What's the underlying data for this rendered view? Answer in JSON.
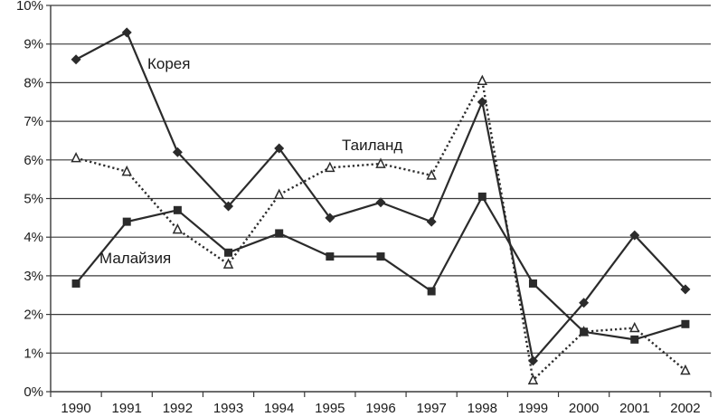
{
  "chart_data": {
    "type": "line",
    "title": "",
    "xlabel": "",
    "ylabel": "",
    "x": [
      "1990",
      "1991",
      "1992",
      "1993",
      "1994",
      "1995",
      "1996",
      "1997",
      "1998",
      "1999",
      "2000",
      "2001",
      "2002"
    ],
    "ylim": [
      0,
      10
    ],
    "y_ticks": [
      "0%",
      "1%",
      "2%",
      "3%",
      "4%",
      "5%",
      "6%",
      "7%",
      "8%",
      "9%",
      "10%"
    ],
    "grid": "horizontal",
    "series": [
      {
        "name": "Корея",
        "marker": "diamond",
        "line": "solid",
        "values": [
          8.6,
          9.3,
          6.2,
          4.8,
          6.3,
          4.5,
          4.9,
          4.4,
          7.5,
          0.8,
          2.3,
          4.05,
          2.65
        ]
      },
      {
        "name": "Таиланд",
        "marker": "triangle",
        "line": "dotted",
        "values": [
          6.05,
          5.7,
          4.2,
          3.3,
          5.1,
          5.8,
          5.9,
          5.6,
          8.05,
          0.3,
          1.55,
          1.65,
          0.55
        ]
      },
      {
        "name": "Малайзия",
        "marker": "square",
        "line": "solid",
        "values": [
          2.8,
          4.4,
          4.7,
          3.6,
          4.1,
          3.5,
          3.5,
          2.6,
          5.05,
          2.8,
          1.55,
          1.35,
          1.75
        ]
      }
    ]
  }
}
